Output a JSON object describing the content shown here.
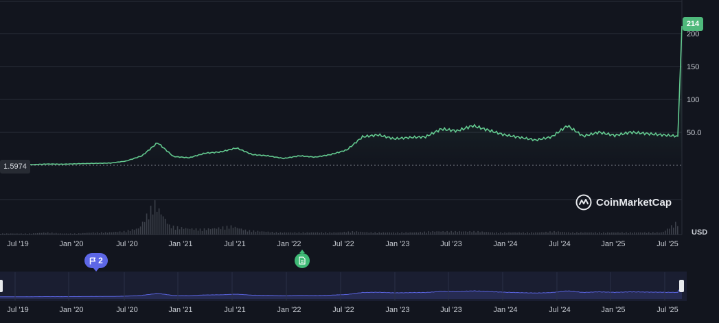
{
  "chart_data": {
    "type": "line",
    "currency_label": "USD",
    "brand": "CoinMarketCap",
    "current_price_label": "214",
    "first_price_label": "1.5974",
    "y_ticks": [
      "200",
      "150",
      "100",
      "50.0"
    ],
    "ylim": [
      0,
      230
    ],
    "x_ticks": [
      "Jul '19",
      "Jan '20",
      "Jul '20",
      "Jan '21",
      "Jul '21",
      "Jan '22",
      "Jul '22",
      "Jan '23",
      "Jul '23",
      "Jan '24",
      "Jul '24",
      "Jan '25",
      "Jul '25"
    ],
    "navigator_ticks": [
      "Jul '19",
      "Jan '20",
      "Jul '20",
      "Jan '21",
      "Jul '21",
      "Jan '22",
      "Jul '22",
      "Jan '23",
      "Jul '23",
      "Jan '24",
      "Jul '24",
      "Jan '25",
      "Jul '25"
    ],
    "event_flags": {
      "count_label": "2"
    },
    "series": [
      {
        "x": [
          "2019-05",
          "2019-07",
          "2019-10",
          "2020-01",
          "2020-03",
          "2020-07",
          "2020-10",
          "2021-01",
          "2021-03",
          "2021-04",
          "2021-05",
          "2021-06",
          "2021-07",
          "2021-09",
          "2021-11",
          "2022-01",
          "2022-03",
          "2022-05",
          "2022-07",
          "2022-09",
          "2022-11",
          "2023-01",
          "2023-02",
          "2023-03",
          "2023-05",
          "2023-07",
          "2023-09",
          "2023-11",
          "2024-01",
          "2024-03",
          "2024-04",
          "2024-05",
          "2024-07",
          "2024-08",
          "2024-10",
          "2024-12",
          "2025-01",
          "2025-02",
          "2025-03",
          "2025-04",
          "2025-05",
          "2025-06",
          "2025-07",
          "2025-08",
          "2025-08b"
        ],
        "values": [
          1.6,
          2.0,
          2.5,
          3.5,
          3.2,
          4.0,
          4.5,
          5.0,
          8.0,
          16.0,
          36.0,
          15.0,
          13.0,
          20.0,
          22.0,
          28.0,
          18.0,
          16.0,
          12.0,
          16.0,
          14.0,
          18.0,
          25.0,
          45.0,
          48.0,
          42.0,
          44.0,
          45.0,
          57.0,
          54.0,
          62.0,
          55.0,
          48.0,
          44.0,
          40.0,
          45.0,
          62.0,
          46.0,
          52.0,
          47.0,
          52.0,
          50.0,
          48.0,
          46.0,
          214.0
        ]
      }
    ],
    "volume": [
      1,
      1,
      1,
      2,
      1,
      1,
      2,
      2,
      3,
      6,
      30,
      8,
      6,
      5,
      6,
      8,
      4,
      3,
      2,
      2,
      2,
      2,
      2,
      3,
      2,
      2,
      2,
      2,
      3,
      3,
      3,
      3,
      2,
      2,
      2,
      2,
      3,
      2,
      2,
      2,
      2,
      2,
      2,
      2,
      12
    ],
    "colors": {
      "line": "#63c98f",
      "background": "#12151e",
      "grid": "#2a2e39",
      "volume": "#3c404a",
      "navigator_line": "#5a64e0",
      "navigator_fill": "#1c2036"
    }
  }
}
